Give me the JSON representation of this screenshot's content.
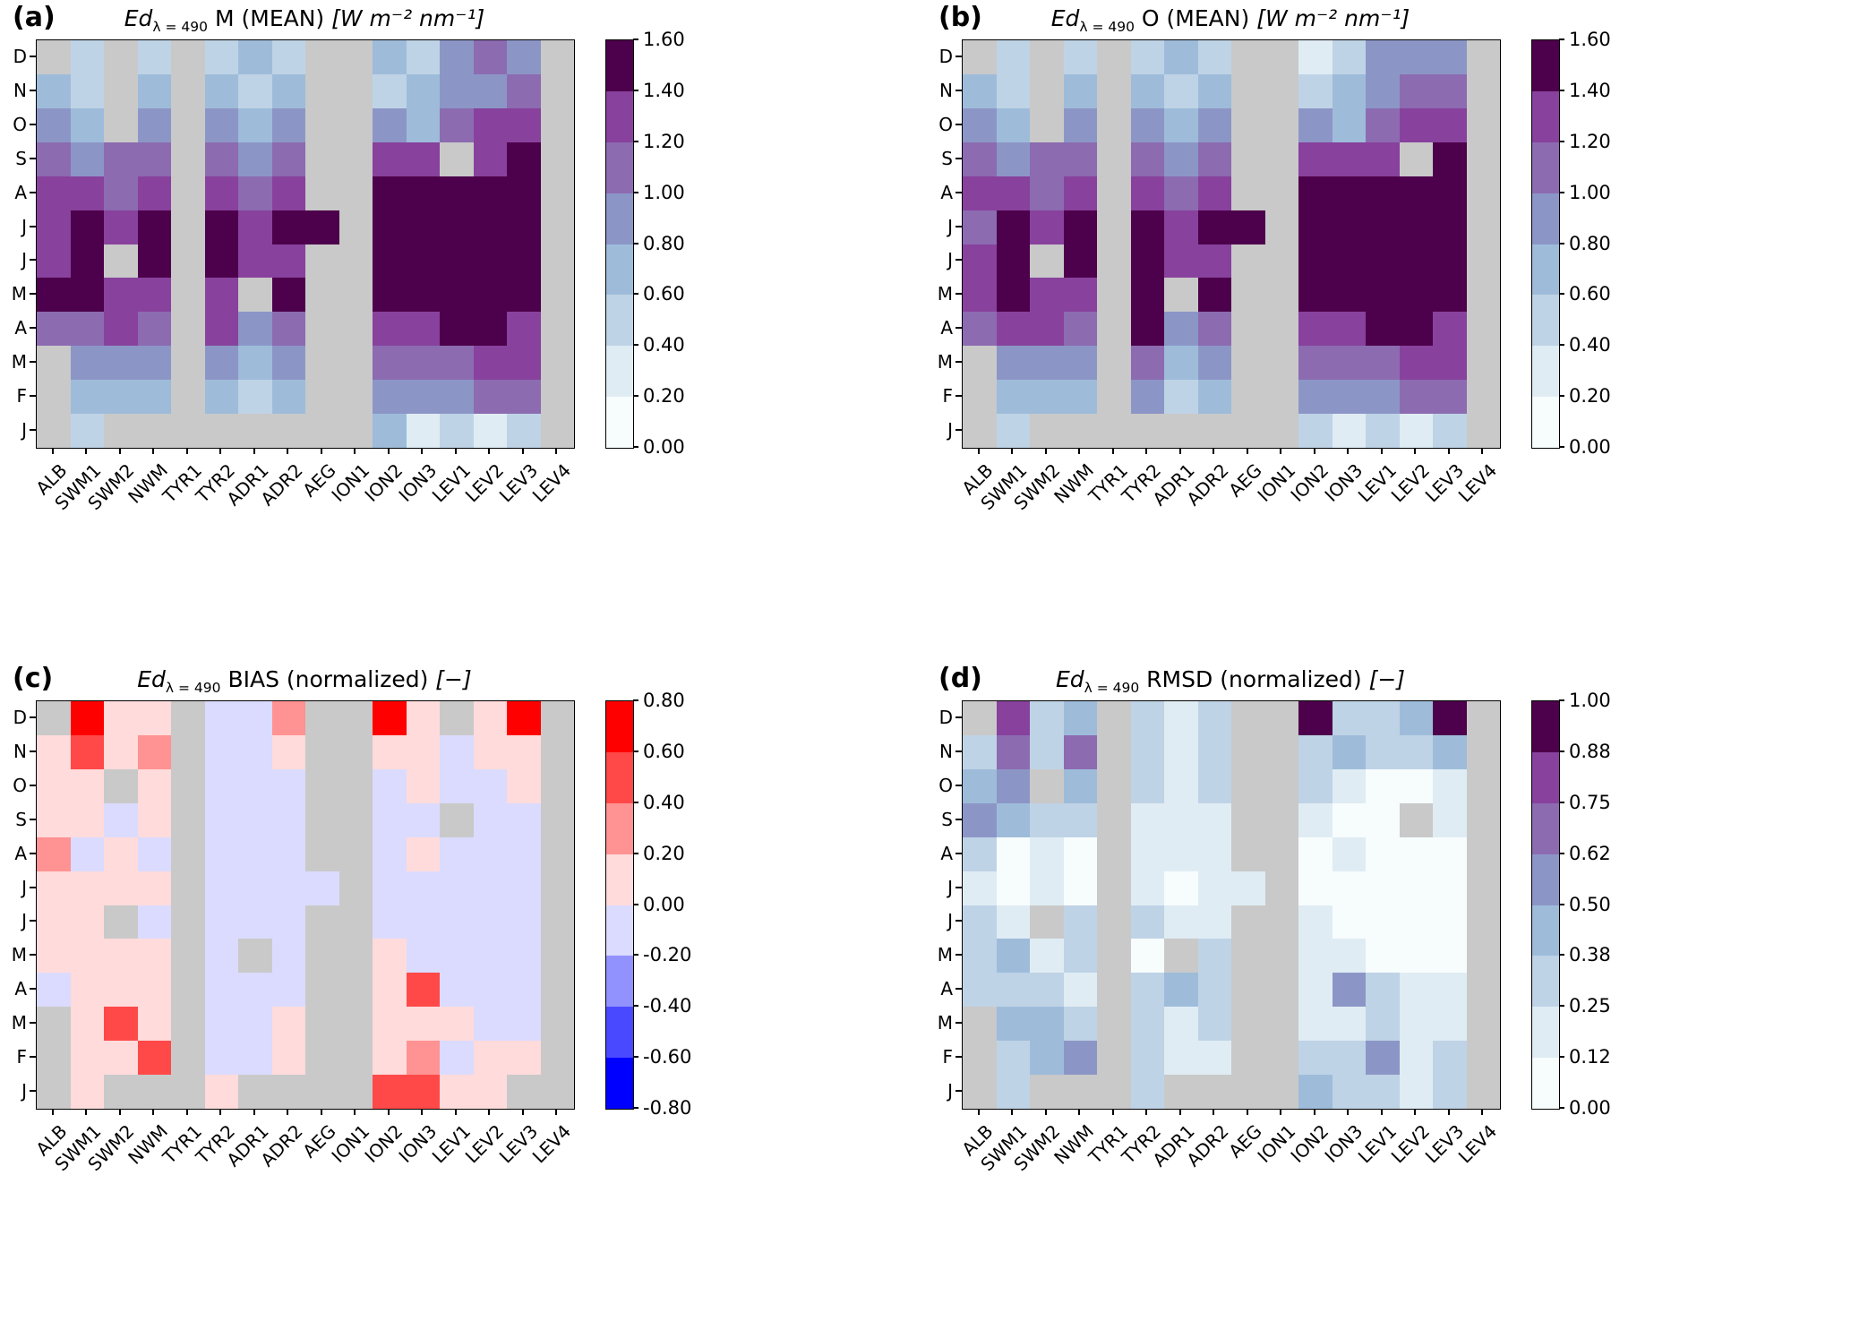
{
  "figure": {
    "background": "#ffffff",
    "nan_color": "#c9c9c9",
    "axis_color": "#000000"
  },
  "colormaps": {
    "BuPu": [
      "#f7fcfd",
      "#e0ecf4",
      "#bfd3e6",
      "#9ebcda",
      "#8c96c6",
      "#8c6bb1",
      "#88419d",
      "#4d004b"
    ],
    "bwr": [
      "#0000ff",
      "#4949ff",
      "#9292ff",
      "#dbdbff",
      "#ffdbdb",
      "#ff9292",
      "#ff4949",
      "#ff0000"
    ]
  },
  "chart_data": [
    {
      "id": "a",
      "panel_label": "(a)",
      "type": "heatmap",
      "title": {
        "symbol": "Ed",
        "subscript": "λ = 490",
        "label": " M (MEAN) ",
        "units": "[W m⁻² nm⁻¹]"
      },
      "x_categories": [
        "ALB",
        "SWM1",
        "SWM2",
        "NWM",
        "TYR1",
        "TYR2",
        "ADR1",
        "ADR2",
        "AEG",
        "ION1",
        "ION2",
        "ION3",
        "LEV1",
        "LEV2",
        "LEV3",
        "LEV4"
      ],
      "y_categories": [
        "D",
        "N",
        "O",
        "S",
        "A",
        "J",
        "J",
        "M",
        "A",
        "M",
        "F",
        "J"
      ],
      "colormap": "BuPu",
      "vmin": 0.0,
      "vmax": 1.6,
      "colorbar_ticks": [
        "0.00",
        "0.20",
        "0.40",
        "0.60",
        "0.80",
        "1.00",
        "1.20",
        "1.40",
        "1.60"
      ],
      "values": [
        [
          null,
          0.5,
          null,
          0.5,
          null,
          0.5,
          0.7,
          0.5,
          null,
          null,
          0.7,
          0.5,
          0.9,
          1.1,
          0.9,
          null
        ],
        [
          0.7,
          0.5,
          null,
          0.7,
          null,
          0.7,
          0.5,
          0.7,
          null,
          null,
          0.5,
          0.7,
          0.9,
          0.9,
          1.1,
          null
        ],
        [
          0.9,
          0.7,
          null,
          0.9,
          null,
          0.9,
          0.7,
          0.9,
          null,
          null,
          0.9,
          0.7,
          1.1,
          1.3,
          1.3,
          null
        ],
        [
          1.1,
          0.9,
          1.1,
          1.1,
          null,
          1.1,
          0.9,
          1.1,
          null,
          null,
          1.3,
          1.3,
          null,
          1.3,
          1.5,
          null
        ],
        [
          1.3,
          1.3,
          1.1,
          1.3,
          null,
          1.3,
          1.1,
          1.3,
          null,
          null,
          1.5,
          1.5,
          1.5,
          1.5,
          1.5,
          null
        ],
        [
          1.3,
          1.5,
          1.3,
          1.5,
          null,
          1.5,
          1.3,
          1.5,
          1.5,
          null,
          1.5,
          1.5,
          1.5,
          1.5,
          1.5,
          null
        ],
        [
          1.3,
          1.5,
          null,
          1.5,
          null,
          1.5,
          1.3,
          1.3,
          null,
          null,
          1.5,
          1.5,
          1.5,
          1.5,
          1.5,
          null
        ],
        [
          1.5,
          1.5,
          1.3,
          1.3,
          null,
          1.3,
          null,
          1.5,
          null,
          null,
          1.5,
          1.5,
          1.5,
          1.5,
          1.5,
          null
        ],
        [
          1.1,
          1.1,
          1.3,
          1.1,
          null,
          1.3,
          0.9,
          1.1,
          null,
          null,
          1.3,
          1.3,
          1.5,
          1.5,
          1.3,
          null
        ],
        [
          null,
          0.9,
          0.9,
          0.9,
          null,
          0.9,
          0.7,
          0.9,
          null,
          null,
          1.1,
          1.1,
          1.1,
          1.3,
          1.3,
          null
        ],
        [
          null,
          0.7,
          0.7,
          0.7,
          null,
          0.7,
          0.5,
          0.7,
          null,
          null,
          0.9,
          0.9,
          0.9,
          1.1,
          1.1,
          null
        ],
        [
          null,
          0.5,
          null,
          null,
          null,
          null,
          null,
          null,
          null,
          null,
          0.7,
          0.3,
          0.5,
          0.3,
          0.5,
          null
        ]
      ]
    },
    {
      "id": "b",
      "panel_label": "(b)",
      "type": "heatmap",
      "title": {
        "symbol": "Ed",
        "subscript": "λ = 490",
        "label": " O (MEAN) ",
        "units": "[W m⁻² nm⁻¹]"
      },
      "x_categories": [
        "ALB",
        "SWM1",
        "SWM2",
        "NWM",
        "TYR1",
        "TYR2",
        "ADR1",
        "ADR2",
        "AEG",
        "ION1",
        "ION2",
        "ION3",
        "LEV1",
        "LEV2",
        "LEV3",
        "LEV4"
      ],
      "y_categories": [
        "D",
        "N",
        "O",
        "S",
        "A",
        "J",
        "J",
        "M",
        "A",
        "M",
        "F",
        "J"
      ],
      "colormap": "BuPu",
      "vmin": 0.0,
      "vmax": 1.6,
      "colorbar_ticks": [
        "0.00",
        "0.20",
        "0.40",
        "0.60",
        "0.80",
        "1.00",
        "1.20",
        "1.40",
        "1.60"
      ],
      "values": [
        [
          null,
          0.5,
          null,
          0.5,
          null,
          0.5,
          0.7,
          0.5,
          null,
          null,
          0.3,
          0.5,
          0.9,
          0.9,
          0.9,
          null
        ],
        [
          0.7,
          0.5,
          null,
          0.7,
          null,
          0.7,
          0.5,
          0.7,
          null,
          null,
          0.5,
          0.7,
          0.9,
          1.1,
          1.1,
          null
        ],
        [
          0.9,
          0.7,
          null,
          0.9,
          null,
          0.9,
          0.7,
          0.9,
          null,
          null,
          0.9,
          0.7,
          1.1,
          1.3,
          1.3,
          null
        ],
        [
          1.1,
          0.9,
          1.1,
          1.1,
          null,
          1.1,
          0.9,
          1.1,
          null,
          null,
          1.3,
          1.3,
          1.3,
          null,
          1.5,
          null
        ],
        [
          1.3,
          1.3,
          1.1,
          1.3,
          null,
          1.3,
          1.1,
          1.3,
          null,
          null,
          1.5,
          1.5,
          1.5,
          1.5,
          1.5,
          null
        ],
        [
          1.1,
          1.5,
          1.3,
          1.5,
          null,
          1.5,
          1.3,
          1.5,
          1.5,
          null,
          1.5,
          1.5,
          1.5,
          1.5,
          1.5,
          null
        ],
        [
          1.3,
          1.5,
          null,
          1.5,
          null,
          1.5,
          1.3,
          1.3,
          null,
          null,
          1.5,
          1.5,
          1.5,
          1.5,
          1.5,
          null
        ],
        [
          1.3,
          1.5,
          1.3,
          1.3,
          null,
          1.5,
          null,
          1.5,
          null,
          null,
          1.5,
          1.5,
          1.5,
          1.5,
          1.5,
          null
        ],
        [
          1.1,
          1.3,
          1.3,
          1.1,
          null,
          1.5,
          0.9,
          1.1,
          null,
          null,
          1.3,
          1.3,
          1.5,
          1.5,
          1.3,
          null
        ],
        [
          null,
          0.9,
          0.9,
          0.9,
          null,
          1.1,
          0.7,
          0.9,
          null,
          null,
          1.1,
          1.1,
          1.1,
          1.3,
          1.3,
          null
        ],
        [
          null,
          0.7,
          0.7,
          0.7,
          null,
          0.9,
          0.5,
          0.7,
          null,
          null,
          0.9,
          0.9,
          0.9,
          1.1,
          1.1,
          null
        ],
        [
          null,
          0.5,
          null,
          null,
          null,
          null,
          null,
          null,
          null,
          null,
          0.5,
          0.3,
          0.5,
          0.3,
          0.5,
          null
        ]
      ]
    },
    {
      "id": "c",
      "panel_label": "(c)",
      "type": "heatmap",
      "title": {
        "symbol": "Ed",
        "subscript": "λ = 490",
        "label": " BIAS (normalized) ",
        "units": "[−]"
      },
      "x_categories": [
        "ALB",
        "SWM1",
        "SWM2",
        "NWM",
        "TYR1",
        "TYR2",
        "ADR1",
        "ADR2",
        "AEG",
        "ION1",
        "ION2",
        "ION3",
        "LEV1",
        "LEV2",
        "LEV3",
        "LEV4"
      ],
      "y_categories": [
        "D",
        "N",
        "O",
        "S",
        "A",
        "J",
        "J",
        "M",
        "A",
        "M",
        "F",
        "J"
      ],
      "colormap": "bwr",
      "vmin": -0.8,
      "vmax": 0.8,
      "colorbar_ticks": [
        "-0.80",
        "-0.60",
        "-0.40",
        "-0.20",
        "0.00",
        "0.20",
        "0.40",
        "0.60",
        "0.80"
      ],
      "values": [
        [
          null,
          0.7,
          0.1,
          0.1,
          null,
          -0.1,
          -0.1,
          0.3,
          null,
          null,
          0.7,
          0.1,
          null,
          0.1,
          0.7,
          null
        ],
        [
          0.1,
          0.5,
          0.1,
          0.3,
          null,
          -0.1,
          -0.1,
          0.1,
          null,
          null,
          0.1,
          0.1,
          -0.1,
          0.1,
          0.1,
          null
        ],
        [
          0.1,
          0.1,
          null,
          0.1,
          null,
          -0.1,
          -0.1,
          -0.1,
          null,
          null,
          -0.1,
          0.1,
          -0.1,
          -0.1,
          0.1,
          null
        ],
        [
          0.1,
          0.1,
          -0.1,
          0.1,
          null,
          -0.1,
          -0.1,
          -0.1,
          null,
          null,
          -0.1,
          -0.1,
          null,
          -0.1,
          -0.1,
          null
        ],
        [
          0.3,
          -0.1,
          0.1,
          -0.1,
          null,
          -0.1,
          -0.1,
          -0.1,
          null,
          null,
          -0.1,
          0.1,
          -0.1,
          -0.1,
          -0.1,
          null
        ],
        [
          0.1,
          0.1,
          0.1,
          0.1,
          null,
          -0.1,
          -0.1,
          -0.1,
          -0.1,
          null,
          -0.1,
          -0.1,
          -0.1,
          -0.1,
          -0.1,
          null
        ],
        [
          0.1,
          0.1,
          null,
          -0.1,
          null,
          -0.1,
          -0.1,
          -0.1,
          null,
          null,
          -0.1,
          -0.1,
          -0.1,
          -0.1,
          -0.1,
          null
        ],
        [
          0.1,
          0.1,
          0.1,
          0.1,
          null,
          -0.1,
          null,
          -0.1,
          null,
          null,
          0.1,
          -0.1,
          -0.1,
          -0.1,
          -0.1,
          null
        ],
        [
          -0.1,
          0.1,
          0.1,
          0.1,
          null,
          -0.1,
          -0.1,
          -0.1,
          null,
          null,
          0.1,
          0.5,
          -0.1,
          -0.1,
          -0.1,
          null
        ],
        [
          null,
          0.1,
          0.5,
          0.1,
          null,
          -0.1,
          -0.1,
          0.1,
          null,
          null,
          0.1,
          0.1,
          0.1,
          -0.1,
          -0.1,
          null
        ],
        [
          null,
          0.1,
          0.1,
          0.5,
          null,
          -0.1,
          -0.1,
          0.1,
          null,
          null,
          0.1,
          0.3,
          -0.1,
          0.1,
          0.1,
          null
        ],
        [
          null,
          0.1,
          null,
          null,
          null,
          0.1,
          null,
          null,
          null,
          null,
          0.5,
          0.5,
          0.1,
          0.1,
          null,
          null
        ]
      ]
    },
    {
      "id": "d",
      "panel_label": "(d)",
      "type": "heatmap",
      "title": {
        "symbol": "Ed",
        "subscript": "λ = 490",
        "label": " RMSD (normalized) ",
        "units": "[−]"
      },
      "x_categories": [
        "ALB",
        "SWM1",
        "SWM2",
        "NWM",
        "TYR1",
        "TYR2",
        "ADR1",
        "ADR2",
        "AEG",
        "ION1",
        "ION2",
        "ION3",
        "LEV1",
        "LEV2",
        "LEV3",
        "LEV4"
      ],
      "y_categories": [
        "D",
        "N",
        "O",
        "S",
        "A",
        "J",
        "J",
        "M",
        "A",
        "M",
        "F",
        "J"
      ],
      "colormap": "BuPu",
      "vmin": 0.0,
      "vmax": 1.0,
      "colorbar_ticks": [
        "0.00",
        "0.12",
        "0.25",
        "0.38",
        "0.50",
        "0.62",
        "0.75",
        "0.88",
        "1.00"
      ],
      "values": [
        [
          null,
          0.81,
          0.31,
          0.44,
          null,
          0.31,
          0.19,
          0.31,
          null,
          null,
          0.94,
          0.31,
          0.31,
          0.44,
          0.94,
          null
        ],
        [
          0.31,
          0.69,
          0.31,
          0.69,
          null,
          0.31,
          0.19,
          0.31,
          null,
          null,
          0.31,
          0.44,
          0.31,
          0.31,
          0.44,
          null
        ],
        [
          0.44,
          0.56,
          null,
          0.44,
          null,
          0.31,
          0.19,
          0.31,
          null,
          null,
          0.31,
          0.19,
          0.06,
          0.06,
          0.19,
          null
        ],
        [
          0.56,
          0.44,
          0.31,
          0.31,
          null,
          0.19,
          0.19,
          0.19,
          null,
          null,
          0.19,
          0.06,
          0.06,
          null,
          0.19,
          null
        ],
        [
          0.31,
          0.06,
          0.19,
          0.06,
          null,
          0.19,
          0.19,
          0.19,
          null,
          null,
          0.06,
          0.19,
          0.06,
          0.06,
          0.06,
          null
        ],
        [
          0.19,
          0.06,
          0.19,
          0.06,
          null,
          0.19,
          0.06,
          0.19,
          0.19,
          null,
          0.06,
          0.06,
          0.06,
          0.06,
          0.06,
          null
        ],
        [
          0.31,
          0.19,
          null,
          0.31,
          null,
          0.31,
          0.19,
          0.19,
          null,
          null,
          0.19,
          0.06,
          0.06,
          0.06,
          0.06,
          null
        ],
        [
          0.31,
          0.44,
          0.19,
          0.31,
          null,
          0.06,
          null,
          0.31,
          null,
          null,
          0.19,
          0.19,
          0.06,
          0.06,
          0.06,
          null
        ],
        [
          0.31,
          0.31,
          0.31,
          0.19,
          null,
          0.31,
          0.44,
          0.31,
          null,
          null,
          0.19,
          0.56,
          0.31,
          0.19,
          0.19,
          null
        ],
        [
          null,
          0.44,
          0.44,
          0.31,
          null,
          0.31,
          0.19,
          0.31,
          null,
          null,
          0.19,
          0.19,
          0.31,
          0.19,
          0.19,
          null
        ],
        [
          null,
          0.31,
          0.44,
          0.56,
          null,
          0.31,
          0.19,
          0.19,
          null,
          null,
          0.31,
          0.31,
          0.56,
          0.19,
          0.31,
          null
        ],
        [
          null,
          0.31,
          null,
          null,
          null,
          0.31,
          null,
          null,
          null,
          null,
          0.44,
          0.31,
          0.31,
          0.19,
          0.31,
          null
        ]
      ]
    }
  ]
}
